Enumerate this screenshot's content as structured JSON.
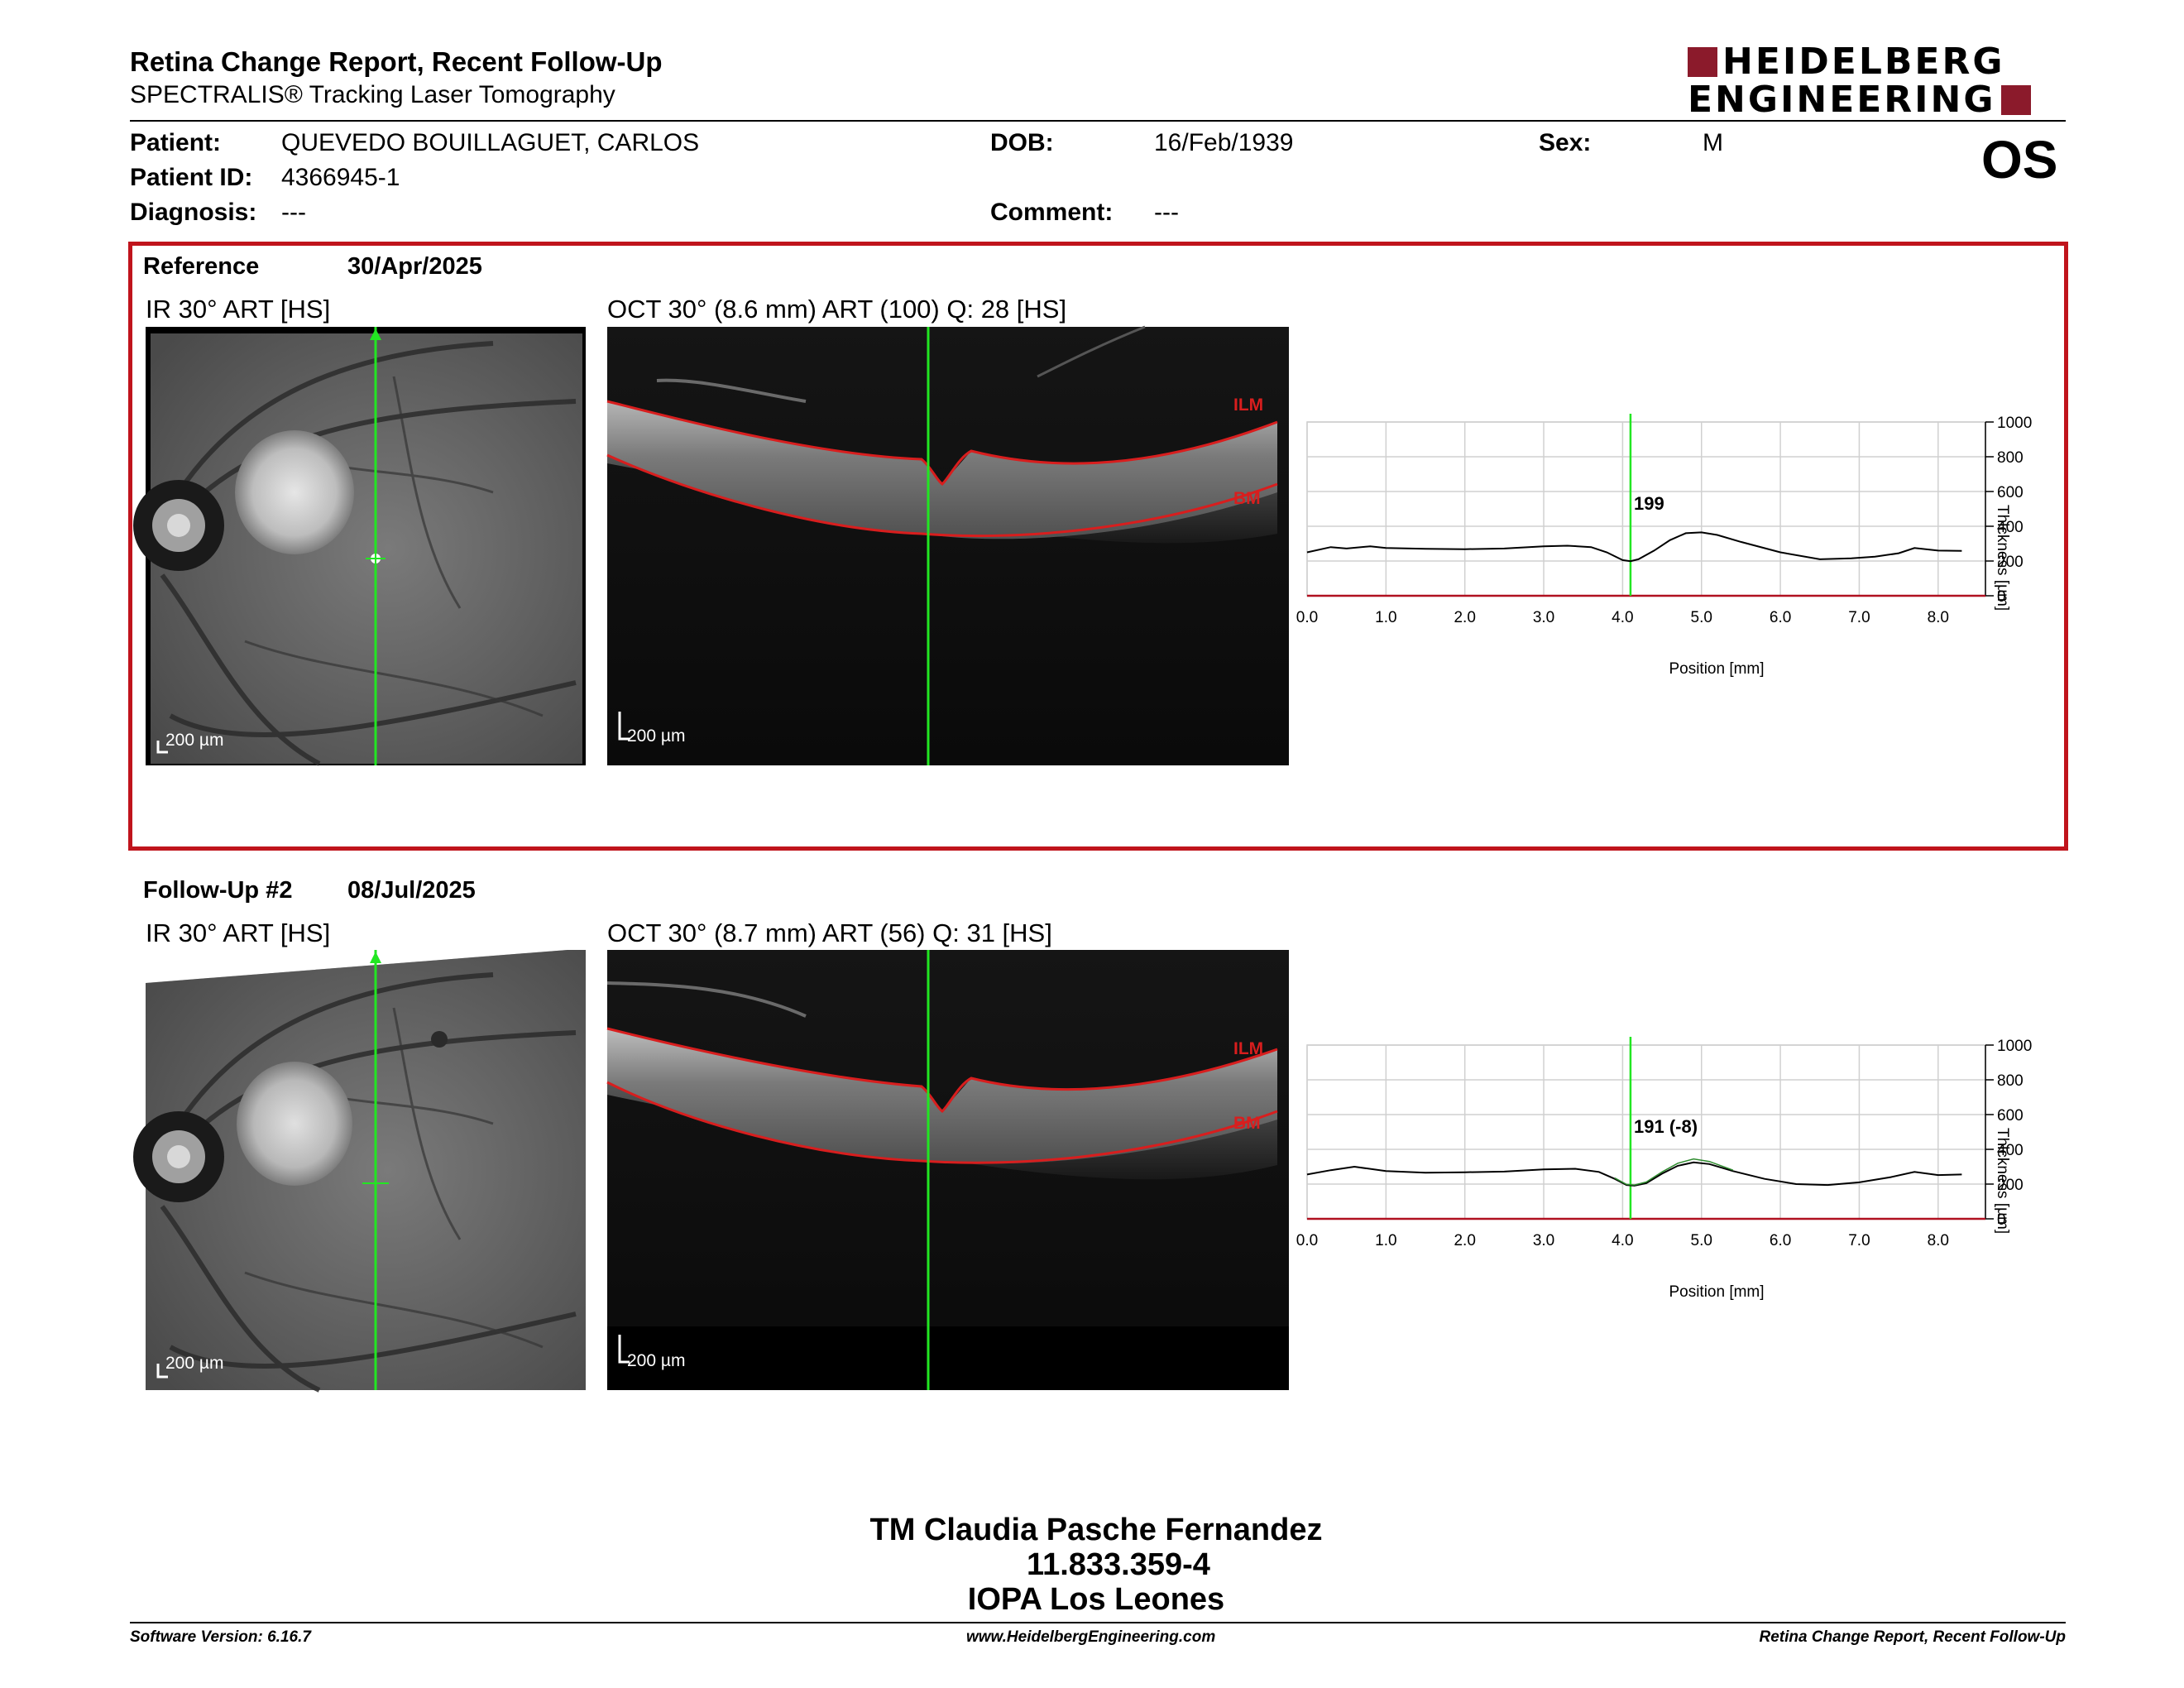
{
  "header": {
    "title": "Retina Change Report, Recent Follow-Up",
    "subtitle": "SPECTRALIS® Tracking Laser Tomography",
    "logo_line1": "HEIDELBERG",
    "logo_line2": "ENGINEERING",
    "eye": "OS"
  },
  "patient": {
    "patient_label": "Patient:",
    "patient_value": "QUEVEDO BOUILLAGUET, CARLOS",
    "id_label": "Patient ID:",
    "id_value": "4366945-1",
    "diagnosis_label": "Diagnosis:",
    "diagnosis_value": "---",
    "dob_label": "DOB:",
    "dob_value": "16/Feb/1939",
    "comment_label": "Comment:",
    "comment_value": "---",
    "sex_label": "Sex:",
    "sex_value": "M"
  },
  "reference": {
    "label": "Reference",
    "date": "30/Apr/2025",
    "ir_label": "IR 30° ART [HS]",
    "oct_label": "OCT 30° (8.6 mm) ART (100) Q: 28 [HS]",
    "scale_ir": "200 µm",
    "scale_oct": "200 µm",
    "layer_top": "ILM",
    "layer_bottom": "BM",
    "marker_label": "199"
  },
  "followup": {
    "label": "Follow-Up #2",
    "date": "08/Jul/2025",
    "ir_label": "IR 30° ART [HS]",
    "oct_label": "OCT 30° (8.7 mm) ART (56) Q: 31 [HS]",
    "scale_ir": "200 µm",
    "scale_oct": "200 µm",
    "layer_top": "ILM",
    "layer_bottom": "BM",
    "marker_label": "191 (-8)"
  },
  "chart_data": [
    {
      "type": "line",
      "xlabel": "Position [mm]",
      "ylabel": "Thickness [µm]",
      "xlim": [
        0,
        8.6
      ],
      "ylim": [
        0,
        1000
      ],
      "x_ticks": [
        "0.0",
        "1.0",
        "2.0",
        "3.0",
        "4.0",
        "5.0",
        "6.0",
        "7.0",
        "8.0"
      ],
      "y_ticks": [
        "0",
        "200",
        "400",
        "600",
        "800",
        "1000"
      ],
      "marker_x": 4.1,
      "series": [
        {
          "x": [
            0.0,
            0.3,
            0.5,
            0.8,
            1.0,
            1.5,
            2.0,
            2.5,
            3.0,
            3.3,
            3.6,
            3.8,
            4.0,
            4.1,
            4.2,
            4.4,
            4.6,
            4.8,
            5.0,
            5.2,
            5.5,
            6.0,
            6.5,
            6.9,
            7.2,
            7.5,
            7.7,
            8.0,
            8.3
          ],
          "y": [
            250,
            280,
            272,
            285,
            275,
            270,
            268,
            272,
            285,
            288,
            280,
            250,
            205,
            199,
            210,
            260,
            320,
            360,
            365,
            350,
            310,
            250,
            210,
            215,
            225,
            245,
            275,
            260,
            258
          ]
        }
      ]
    },
    {
      "type": "line",
      "xlabel": "Position [mm]",
      "ylabel": "Thickness [µm]",
      "xlim": [
        0,
        8.6
      ],
      "ylim": [
        0,
        1000
      ],
      "x_ticks": [
        "0.0",
        "1.0",
        "2.0",
        "3.0",
        "4.0",
        "5.0",
        "6.0",
        "7.0",
        "8.0"
      ],
      "y_ticks": [
        "0",
        "200",
        "400",
        "600",
        "800",
        "1000"
      ],
      "marker_x": 4.1,
      "series": [
        {
          "x": [
            0.0,
            0.3,
            0.6,
            1.0,
            1.5,
            2.0,
            2.5,
            3.0,
            3.4,
            3.7,
            3.9,
            4.05,
            4.15,
            4.3,
            4.5,
            4.7,
            4.9,
            5.1,
            5.4,
            5.8,
            6.2,
            6.6,
            7.0,
            7.4,
            7.7,
            8.0,
            8.3
          ],
          "y": [
            255,
            280,
            300,
            275,
            265,
            268,
            272,
            285,
            288,
            270,
            230,
            195,
            191,
            205,
            260,
            305,
            325,
            315,
            275,
            230,
            200,
            195,
            210,
            240,
            270,
            252,
            255
          ]
        },
        {
          "x": [
            3.9,
            4.05,
            4.15,
            4.3,
            4.5,
            4.7,
            4.9,
            5.1,
            5.4
          ],
          "y": [
            235,
            198,
            195,
            212,
            270,
            320,
            345,
            330,
            280
          ]
        }
      ]
    }
  ],
  "footer": {
    "name": "TM Claudia Pasche Fernandez",
    "rut": "11.833.359-4",
    "clinic": "IOPA Los Leones",
    "software": "Software Version: 6.16.7",
    "website": "www.HeidelbergEngineering.com",
    "report_name": "Retina Change Report, Recent Follow-Up"
  }
}
